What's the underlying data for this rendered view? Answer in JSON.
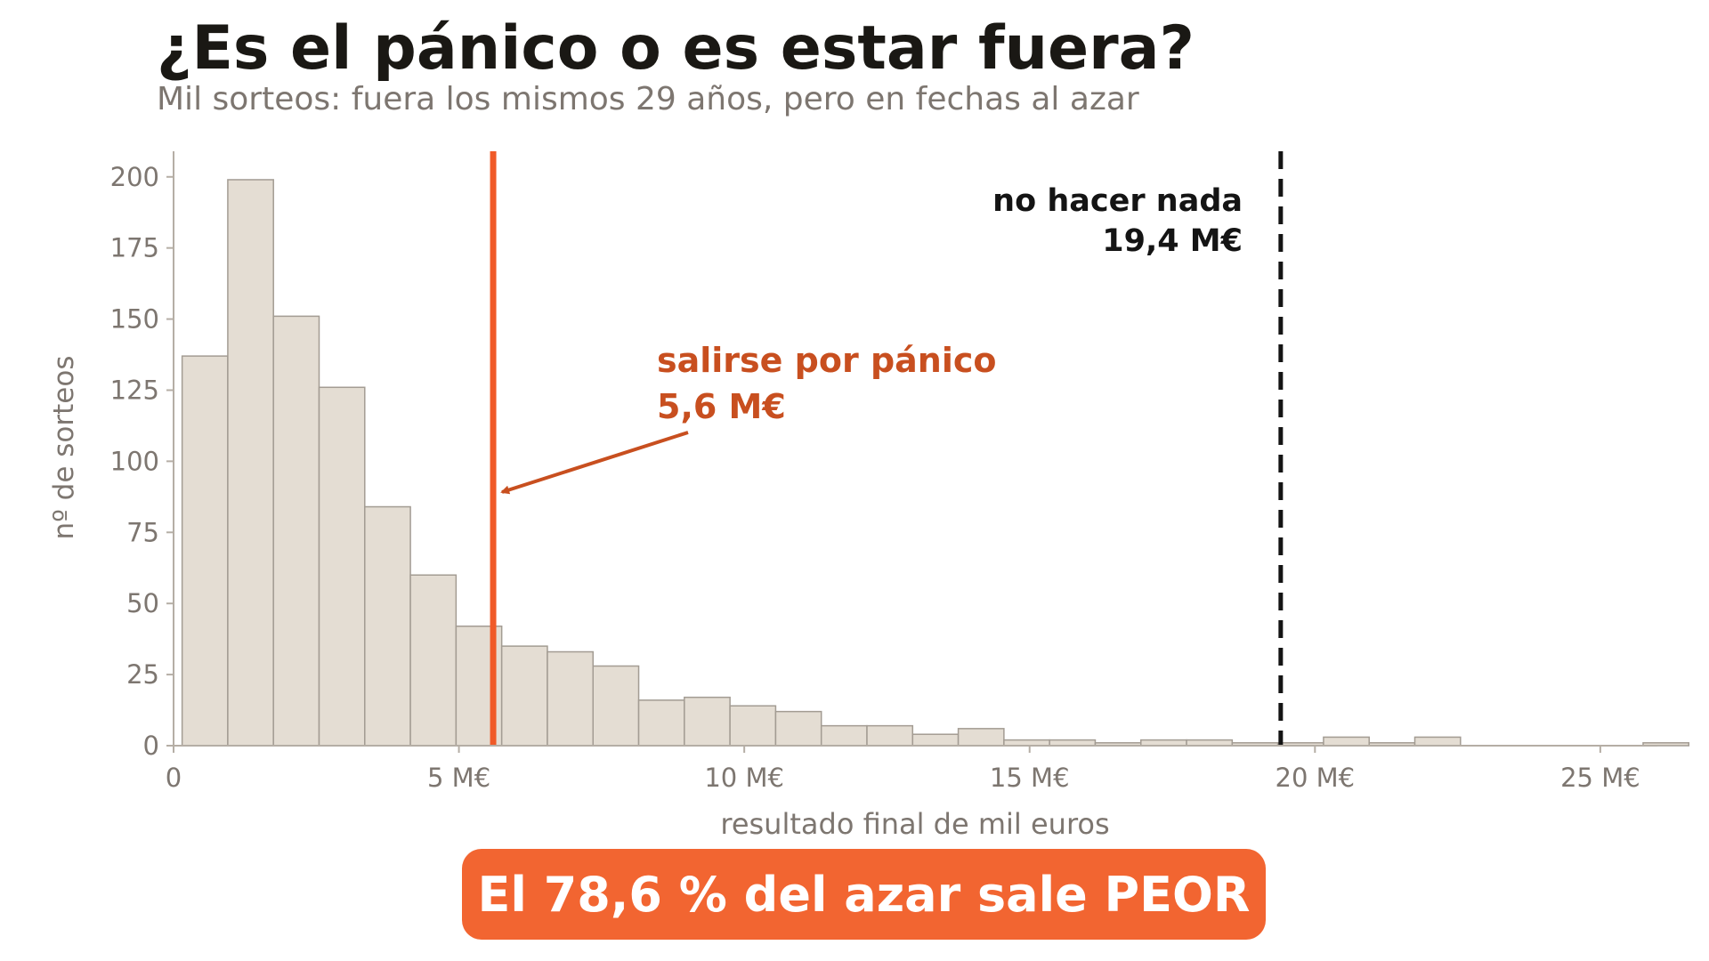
{
  "title": "¿Es el pánico o es estar fuera?",
  "subtitle": "Mil sorteos: fuera los mismos 29 años, pero en fechas al azar",
  "banner": "El 78,6 % del azar sale PEOR",
  "colors": {
    "bar_fill": "#e4ddd3",
    "bar_stroke": "#a39c93",
    "panic_line": "#f05a28",
    "panic_text": "#c84f1f",
    "nothing_line": "#141414",
    "axis": "#b5aea5",
    "tick_text": "#7d7670",
    "banner": "#f26531"
  },
  "chart_data": {
    "type": "bar",
    "histogram": true,
    "xlabel": "resultado final de mil euros",
    "ylabel": "nº de sorteos",
    "xlim": [
      0,
      26
    ],
    "ylim": [
      0,
      209
    ],
    "bin_width": 0.8,
    "bin_start": 0.15,
    "bin_counts": [
      137,
      199,
      151,
      126,
      84,
      60,
      42,
      35,
      33,
      28,
      16,
      17,
      14,
      12,
      7,
      7,
      4,
      6,
      2,
      2,
      1,
      2,
      2,
      1,
      1,
      3,
      1,
      3,
      0,
      0,
      0,
      0,
      1
    ],
    "x_ticks": [
      {
        "value": 0,
        "label": "0"
      },
      {
        "value": 5,
        "label": "5 M€"
      },
      {
        "value": 10,
        "label": "10 M€"
      },
      {
        "value": 15,
        "label": "15 M€"
      },
      {
        "value": 20,
        "label": "20 M€"
      },
      {
        "value": 25,
        "label": "25 M€"
      }
    ],
    "y_ticks": [
      0,
      25,
      50,
      75,
      100,
      125,
      150,
      175,
      200
    ],
    "reference_lines": [
      {
        "name": "panic",
        "x": 5.6,
        "style": "solid",
        "label_line1": "salirse por pánico",
        "label_line2": "5,6 M€"
      },
      {
        "name": "nothing",
        "x": 19.4,
        "style": "dashed",
        "label_line1": "no hacer nada",
        "label_line2": "19,4 M€"
      }
    ],
    "grid": false
  }
}
